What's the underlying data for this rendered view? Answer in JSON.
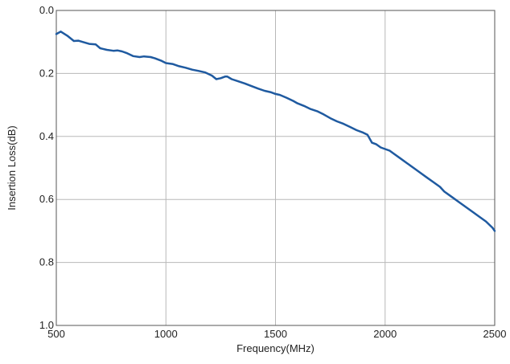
{
  "chart_data": {
    "type": "line",
    "xlabel": "Frequency(MHz)",
    "ylabel": "Insertion Loss(dB)",
    "xlim": [
      500,
      2500
    ],
    "ylim": [
      0.0,
      1.0
    ],
    "y_axis_inverted": true,
    "x_ticks": [
      500,
      1000,
      1500,
      2000,
      2500
    ],
    "y_ticks": [
      "0.0",
      "0.2",
      "0.4",
      "0.6",
      "0.8",
      "1.0"
    ],
    "grid": true,
    "line_color": "#1f5aa0",
    "series": [
      {
        "x": [
          500,
          520,
          550,
          580,
          600,
          620,
          650,
          680,
          700,
          730,
          760,
          780,
          800,
          820,
          850,
          880,
          900,
          930,
          950,
          980,
          1000,
          1030,
          1060,
          1090,
          1120,
          1150,
          1180,
          1210,
          1230,
          1250,
          1270,
          1280,
          1300,
          1330,
          1360,
          1390,
          1420,
          1450,
          1480,
          1500,
          1520,
          1550,
          1580,
          1600,
          1630,
          1660,
          1690,
          1720,
          1750,
          1780,
          1810,
          1840,
          1870,
          1900,
          1920,
          1940,
          1960,
          1980,
          2000,
          2020,
          2040,
          2070,
          2100,
          2130,
          2160,
          2190,
          2220,
          2250,
          2270,
          2290,
          2310,
          2340,
          2370,
          2400,
          2430,
          2460,
          2490,
          2500
        ],
        "y": [
          0.075,
          0.067,
          0.08,
          0.097,
          0.096,
          0.1,
          0.106,
          0.108,
          0.12,
          0.125,
          0.128,
          0.127,
          0.13,
          0.135,
          0.145,
          0.148,
          0.146,
          0.148,
          0.152,
          0.16,
          0.167,
          0.17,
          0.177,
          0.182,
          0.188,
          0.192,
          0.197,
          0.207,
          0.218,
          0.215,
          0.21,
          0.21,
          0.218,
          0.225,
          0.232,
          0.24,
          0.248,
          0.255,
          0.26,
          0.265,
          0.268,
          0.277,
          0.287,
          0.295,
          0.303,
          0.313,
          0.32,
          0.33,
          0.342,
          0.352,
          0.36,
          0.37,
          0.38,
          0.388,
          0.395,
          0.42,
          0.425,
          0.435,
          0.44,
          0.445,
          0.455,
          0.47,
          0.485,
          0.5,
          0.515,
          0.53,
          0.545,
          0.56,
          0.575,
          0.585,
          0.595,
          0.61,
          0.625,
          0.64,
          0.655,
          0.67,
          0.69,
          0.7
        ]
      }
    ]
  }
}
